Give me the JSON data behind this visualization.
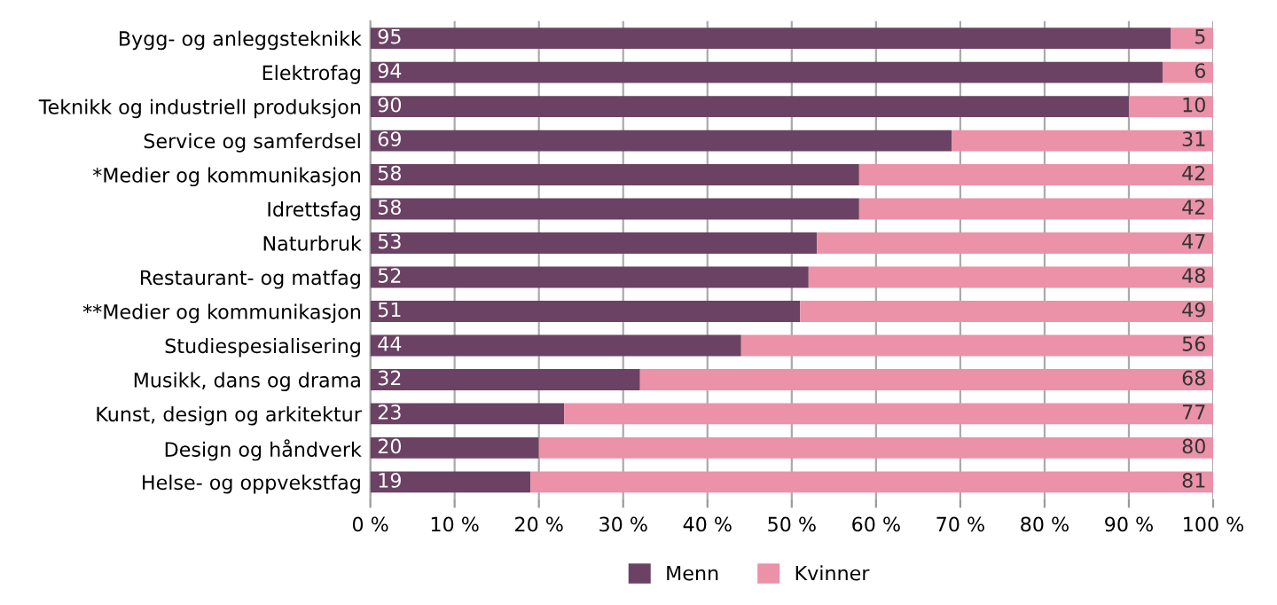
{
  "chart_data": {
    "type": "bar",
    "orientation": "horizontal",
    "stacked": true,
    "categories": [
      "Bygg- og anleggsteknikk",
      "Elektrofag",
      "Teknikk og industriell produksjon",
      "Service og samferdsel",
      "*Medier og kommunikasjon",
      "Idrettsfag",
      "Naturbruk",
      "Restaurant- og matfag",
      "**Medier og kommunikasjon",
      "Studiespesialisering",
      "Musikk, dans og drama",
      "Kunst, design og arkitektur",
      "Design og håndverk",
      "Helse- og oppvekstfag"
    ],
    "series": [
      {
        "name": "Menn",
        "color": "#6b4263",
        "values": [
          95,
          94,
          90,
          69,
          58,
          58,
          53,
          52,
          51,
          44,
          32,
          23,
          20,
          19
        ]
      },
      {
        "name": "Kvinner",
        "color": "#eb91a8",
        "values": [
          5,
          6,
          10,
          31,
          42,
          42,
          47,
          48,
          49,
          56,
          68,
          77,
          80,
          81
        ]
      }
    ],
    "xlim": [
      0,
      100
    ],
    "xticks": [
      {
        "value": 0,
        "label": "0 %"
      },
      {
        "value": 10,
        "label": "10 %"
      },
      {
        "value": 20,
        "label": "20 %"
      },
      {
        "value": 30,
        "label": "30 %"
      },
      {
        "value": 40,
        "label": "40 %"
      },
      {
        "value": 50,
        "label": "50 %"
      },
      {
        "value": 60,
        "label": "60 %"
      },
      {
        "value": 70,
        "label": "70 %"
      },
      {
        "value": 80,
        "label": "80 %"
      },
      {
        "value": 90,
        "label": "90 %"
      },
      {
        "value": 100,
        "label": "100 %"
      }
    ],
    "grid": "x",
    "legend": "bottom",
    "data_labels": true
  }
}
